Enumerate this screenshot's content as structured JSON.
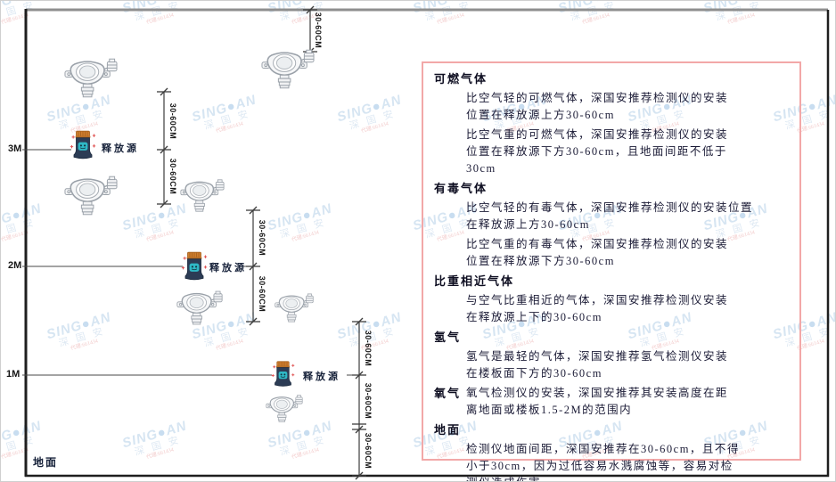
{
  "diagram": {
    "heights": [
      "3M",
      "2M",
      "1M"
    ],
    "ground_label": "地面",
    "source_label": "释放源",
    "dim_label": "30-60CM"
  },
  "panel": {
    "sections": [
      {
        "heading": "可燃气体",
        "paragraphs": [
          [
            "比空气轻的可燃气体，深国安推荐检测仪的安装",
            "位置在释放源上方30-60cm"
          ],
          [
            "比空气重的可燃气体，深国安推荐检测仪的安装",
            "位置在释放源下方30-60cm，且地面间距不低于",
            "30cm"
          ]
        ]
      },
      {
        "heading": "有毒气体",
        "paragraphs": [
          [
            "比空气轻的有毒气体，深国安推荐检测仪的安装位置",
            "在释放源上方30-60cm"
          ],
          [
            "比空气重的有毒气体，深国安推荐检测仪的安装",
            "位置在释放源下方30-60cm"
          ]
        ]
      },
      {
        "heading": "比重相近气体",
        "paragraphs": [
          [
            "与空气比重相近的气体，深国安推荐检测仪安装",
            "在释放源上下的30-60cm"
          ]
        ]
      },
      {
        "heading": "氢气",
        "paragraphs": [
          [
            "氢气是最轻的气体，深国安推荐氢气检测仪安装",
            "在楼板面下方的30-60cm"
          ]
        ]
      },
      {
        "heading": "氧气",
        "inline": true,
        "paragraphs": [
          [
            "氧气检测仪的安装，深国安推荐其安装高度在距",
            "离地面或楼板1.5-2M的范围内"
          ]
        ]
      },
      {
        "heading": "地面",
        "paragraphs": [
          [
            "检测仪地面间距，深国安推荐在30-60cm，且不得",
            "小于30cm，因为过低容易水溅腐蚀等，容易对检",
            "测仪造成伤害"
          ]
        ]
      }
    ]
  },
  "watermark": {
    "brand_left": "SING",
    "brand_dot": "●",
    "brand_right": "AN",
    "cn": "深 国 安",
    "agent": "代理:661434"
  }
}
